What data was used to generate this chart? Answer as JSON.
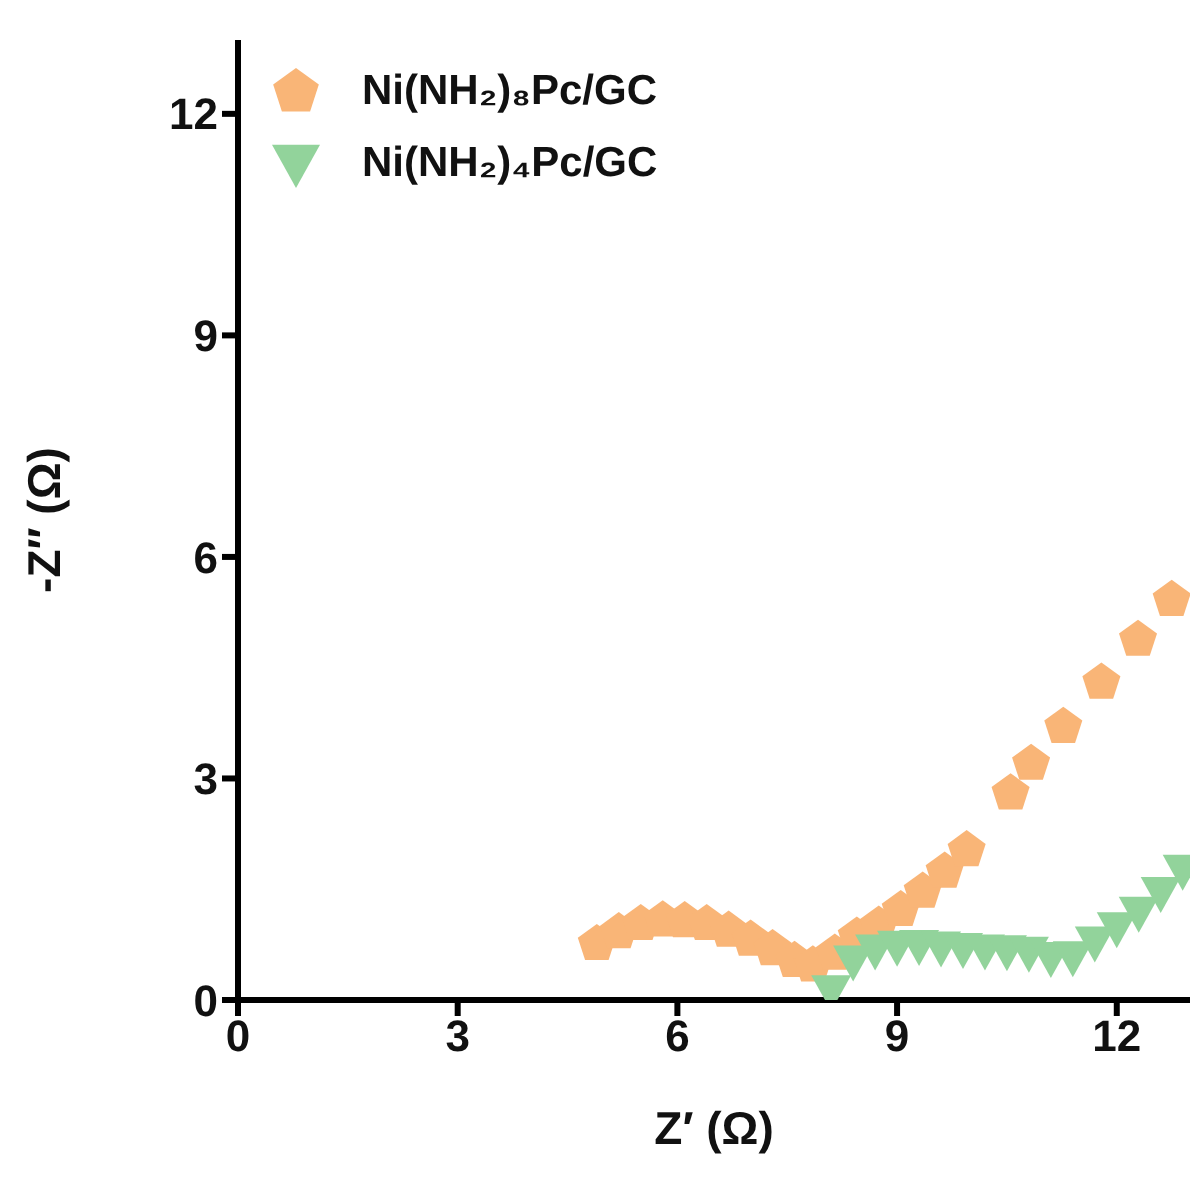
{
  "chart_data": {
    "type": "scatter",
    "xlabel": "Z′ (Ω)",
    "ylabel": "-Z″ (Ω)",
    "xlim": [
      0,
      13
    ],
    "ylim": [
      0,
      13
    ],
    "xticks": [
      0,
      3,
      6,
      9,
      12
    ],
    "yticks": [
      0,
      3,
      6,
      9,
      12
    ],
    "legend": "top left",
    "series": [
      {
        "name": "Ni(NH₂)₈Pc/GC",
        "color": "#f9b577",
        "x": [
          4.9,
          5.2,
          5.5,
          5.8,
          6.1,
          6.4,
          6.7,
          7.0,
          7.3,
          7.6,
          7.85,
          8.15,
          8.45,
          8.75,
          9.05,
          9.35,
          9.65,
          9.95,
          10.55,
          10.83,
          11.27,
          11.79,
          12.29,
          12.75
        ],
        "values": [
          0.76,
          0.92,
          1.03,
          1.08,
          1.07,
          1.03,
          0.94,
          0.82,
          0.69,
          0.53,
          0.47,
          0.63,
          0.86,
          1.01,
          1.22,
          1.47,
          1.74,
          2.03,
          2.8,
          3.2,
          3.7,
          4.3,
          4.88,
          5.42
        ]
      },
      {
        "name": "Ni(NH₂)₄Pc/GC",
        "color": "#92d39b",
        "marker": "triangle",
        "x": [
          8.1,
          8.4,
          8.7,
          9.0,
          9.3,
          9.6,
          9.9,
          10.2,
          10.5,
          10.8,
          11.1,
          11.4,
          11.7,
          12.0,
          12.3,
          12.6,
          12.9
        ],
        "values": [
          0.12,
          0.52,
          0.67,
          0.72,
          0.73,
          0.71,
          0.69,
          0.67,
          0.66,
          0.64,
          0.57,
          0.58,
          0.78,
          0.97,
          1.18,
          1.45,
          1.75
        ]
      }
    ]
  }
}
